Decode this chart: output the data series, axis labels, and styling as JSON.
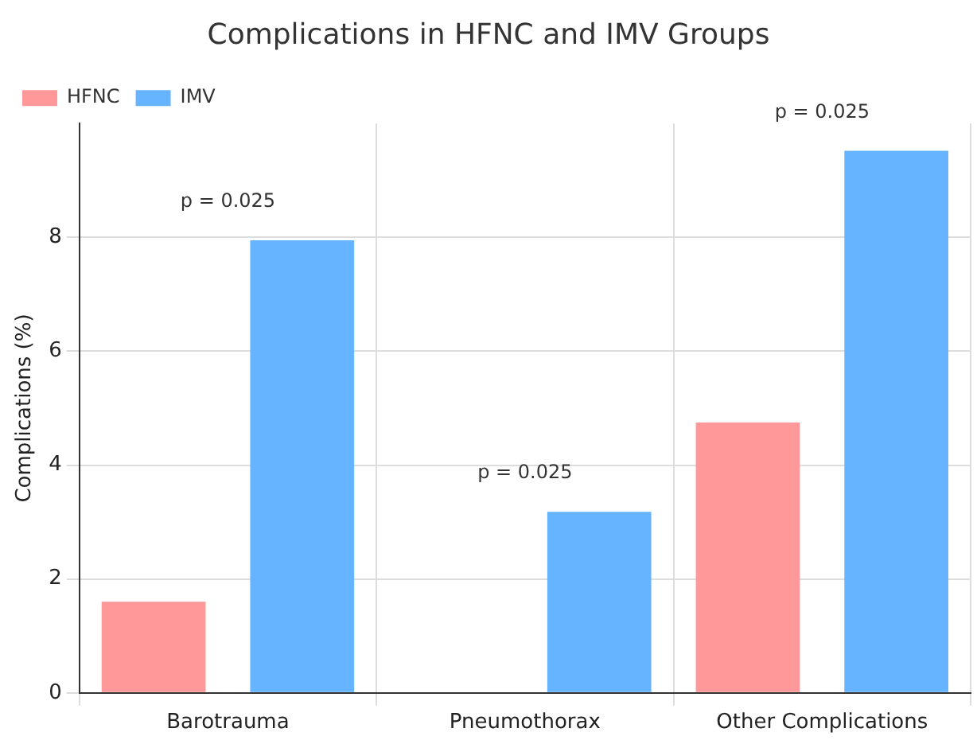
{
  "chart_data": {
    "type": "bar",
    "title": "Complications in HFNC and IMV Groups",
    "ylabel": "Complications (%)",
    "categories": [
      "Barotrauma",
      "Pneumothorax",
      "Other Complications"
    ],
    "series": [
      {
        "name": "HFNC",
        "color": "#ff9999",
        "values": [
          1.6,
          0,
          4.75
        ]
      },
      {
        "name": "IMV",
        "color": "#66b3ff",
        "values": [
          7.95,
          3.18,
          9.52
        ]
      }
    ],
    "ylim": [
      0,
      10
    ],
    "yticks": [
      0,
      2,
      4,
      6,
      8
    ],
    "grid": true,
    "legend": "top left",
    "annotations": [
      "p = 0.025",
      "p = 0.025",
      "p = 0.025"
    ]
  }
}
